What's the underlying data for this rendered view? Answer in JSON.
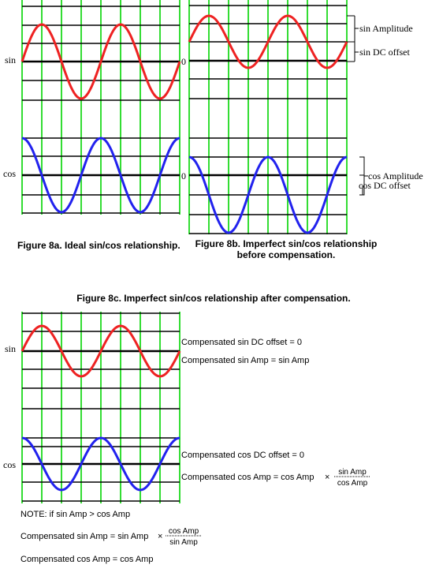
{
  "figure_8a": {
    "sin_label": "sin",
    "cos_label": "cos",
    "caption": "Figure 8a. Ideal sin/cos relationship."
  },
  "figure_8b": {
    "zero_labels": [
      "0",
      "0"
    ],
    "sin_amplitude": "sin Amplitude",
    "sin_dc_offset": "sin DC offset",
    "cos_amplitude": "cos Amplitude",
    "cos_dc_offset": "cos DC offset",
    "caption_lines": [
      "Figure 8b. Imperfect sin/cos relationship",
      "before compensation."
    ]
  },
  "figure_8c": {
    "caption": "Figure 8c. Imperfect sin/cos relationship after compensation.",
    "sin_label": "sin",
    "cos_label": "cos",
    "sin_dc": "Compensated sin DC offset  =  0",
    "sin_amp": "Compensated sin Amp  =  sin Amp",
    "cos_dc": "Compensated cos DC offset  =  0",
    "cos_amp": "Compensated cos Amp  =  cos Amp",
    "times": "×",
    "cos_amp_numerator": "sin Amp",
    "cos_amp_denominator": "cos Amp"
  },
  "note": {
    "condition": "NOTE: if sin Amp > cos Amp",
    "sin_amp": "Compensated sin Amp  =  sin Amp",
    "times": "×",
    "numerator": "cos Amp",
    "denominator": "sin Amp",
    "cos_amp": "Compensated cos Amp  =  cos Amp"
  }
}
